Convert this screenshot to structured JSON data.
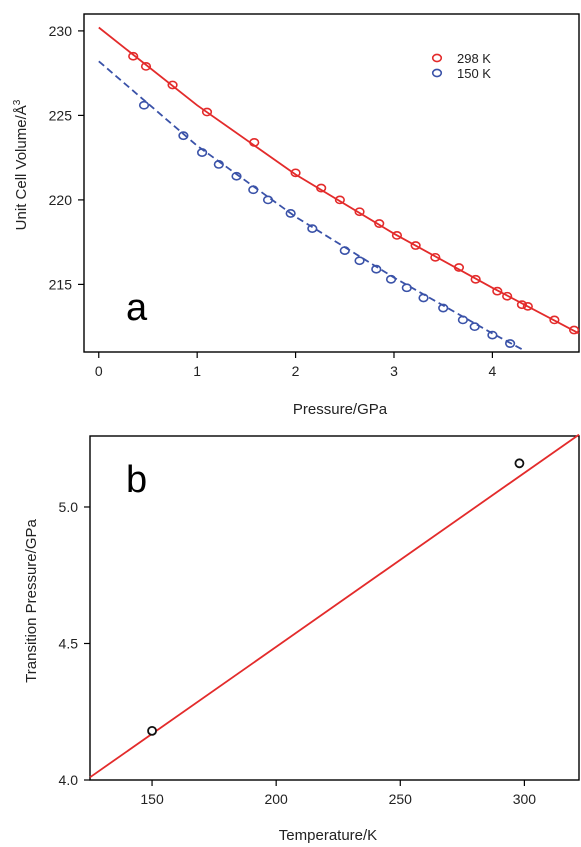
{
  "chart_data": [
    {
      "panel": "a",
      "type": "scatter",
      "xlabel": "Pressure/GPa",
      "ylabel": "Unit Cell Volume/Å",
      "ylabel_sup": "3",
      "xlim": [
        -0.15,
        4.88
      ],
      "ylim": [
        211.0,
        231.0
      ],
      "xticks": [
        "0",
        "1",
        "2",
        "3",
        "4"
      ],
      "yticks": [
        "215",
        "220",
        "225",
        "230"
      ],
      "legend_position": "top-right",
      "series": [
        {
          "name": "298 K",
          "color": "#e32b2b",
          "marker": "open-circle",
          "fit_line": "solid",
          "fit": {
            "x": [
              0.0,
              1.0,
              2.0,
              3.0,
              4.0,
              4.88
            ],
            "y": [
              230.2,
              225.6,
              221.5,
              218.0,
              214.8,
              212.1
            ]
          },
          "points": {
            "x": [
              0.35,
              0.48,
              0.75,
              1.1,
              1.58,
              2.0,
              2.26,
              2.45,
              2.65,
              2.85,
              3.03,
              3.22,
              3.42,
              3.66,
              3.83,
              4.05,
              4.15,
              4.3,
              4.36,
              4.63,
              4.83
            ],
            "y": [
              228.5,
              227.9,
              226.8,
              225.2,
              223.4,
              221.6,
              220.7,
              220.0,
              219.3,
              218.6,
              217.9,
              217.3,
              216.6,
              216.0,
              215.3,
              214.6,
              214.3,
              213.8,
              213.7,
              212.9,
              212.3
            ]
          }
        },
        {
          "name": "150 K",
          "color": "#3a52a8",
          "marker": "open-circle",
          "fit_line": "dashed",
          "fit": {
            "x": [
              0.0,
              1.0,
              2.0,
              3.0,
              4.0,
              4.32
            ],
            "y": [
              228.2,
              223.2,
              219.0,
              215.4,
              212.1,
              211.1
            ]
          },
          "points": {
            "x": [
              0.46,
              0.86,
              1.05,
              1.22,
              1.4,
              1.57,
              1.72,
              1.95,
              2.17,
              2.5,
              2.65,
              2.82,
              2.97,
              3.13,
              3.3,
              3.5,
              3.7,
              3.82,
              4.0,
              4.18
            ],
            "y": [
              225.6,
              223.8,
              222.8,
              222.1,
              221.4,
              220.6,
              220.0,
              219.2,
              218.3,
              217.0,
              216.4,
              215.9,
              215.3,
              214.8,
              214.2,
              213.6,
              212.9,
              212.5,
              212.0,
              211.5
            ]
          }
        }
      ]
    },
    {
      "panel": "b",
      "type": "scatter",
      "xlabel": "Temperature/K",
      "ylabel": "Transition Pressure/GPa",
      "xlim": [
        125,
        322
      ],
      "ylim": [
        4.0,
        5.26
      ],
      "xticks": [
        "150",
        "200",
        "250",
        "300"
      ],
      "yticks": [
        "4.0",
        "4.5",
        "5.0"
      ],
      "fit_line": {
        "color": "#e32b2b",
        "x": [
          125,
          322
        ],
        "y": [
          4.01,
          5.265
        ]
      },
      "series": [
        {
          "marker": "open-circle",
          "color": "#111111",
          "x": [
            150,
            298
          ],
          "y": [
            4.18,
            5.16
          ]
        }
      ]
    }
  ]
}
